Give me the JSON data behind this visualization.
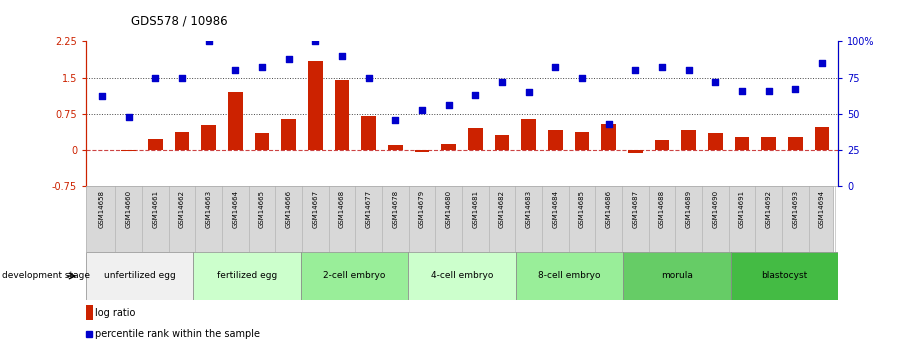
{
  "title": "GDS578 / 10986",
  "samples": [
    "GSM14658",
    "GSM14660",
    "GSM14661",
    "GSM14662",
    "GSM14663",
    "GSM14664",
    "GSM14665",
    "GSM14666",
    "GSM14667",
    "GSM14668",
    "GSM14677",
    "GSM14678",
    "GSM14679",
    "GSM14680",
    "GSM14681",
    "GSM14682",
    "GSM14683",
    "GSM14684",
    "GSM14685",
    "GSM14686",
    "GSM14687",
    "GSM14688",
    "GSM14689",
    "GSM14690",
    "GSM14691",
    "GSM14692",
    "GSM14693",
    "GSM14694"
  ],
  "log_ratio": [
    0.0,
    -0.02,
    0.22,
    0.38,
    0.52,
    1.2,
    0.35,
    0.65,
    1.85,
    1.45,
    0.7,
    0.1,
    -0.04,
    0.12,
    0.45,
    0.32,
    0.65,
    0.42,
    0.38,
    0.55,
    -0.06,
    0.2,
    0.42,
    0.36,
    0.28,
    0.28,
    0.27,
    0.48
  ],
  "percentile_rank": [
    62,
    48,
    75,
    75,
    100,
    80,
    82,
    88,
    100,
    90,
    75,
    46,
    53,
    56,
    63,
    72,
    65,
    82,
    75,
    43,
    80,
    82,
    80,
    72,
    66,
    66,
    67,
    85
  ],
  "stages": [
    {
      "label": "unfertilized egg",
      "start": 0,
      "end": 4,
      "color": "#f0f0f0"
    },
    {
      "label": "fertilized egg",
      "start": 4,
      "end": 8,
      "color": "#ccffcc"
    },
    {
      "label": "2-cell embryo",
      "start": 8,
      "end": 12,
      "color": "#99ee99"
    },
    {
      "label": "4-cell embryo",
      "start": 12,
      "end": 16,
      "color": "#ccffcc"
    },
    {
      "label": "8-cell embryo",
      "start": 16,
      "end": 20,
      "color": "#99ee99"
    },
    {
      "label": "morula",
      "start": 20,
      "end": 24,
      "color": "#66cc66"
    },
    {
      "label": "blastocyst",
      "start": 24,
      "end": 28,
      "color": "#44bb44"
    }
  ],
  "ylim_left": [
    -0.75,
    2.25
  ],
  "ylim_right": [
    0,
    100
  ],
  "yticks_left": [
    -0.75,
    0.0,
    0.75,
    1.5,
    2.25
  ],
  "yticks_right": [
    0,
    25,
    50,
    75,
    100
  ],
  "ytick_labels_left": [
    "-0.75",
    "0",
    "0.75",
    "1.5",
    "2.25"
  ],
  "ytick_labels_right": [
    "0",
    "25",
    "50",
    "75",
    "100%"
  ],
  "bar_color": "#cc2200",
  "dot_color": "#0000cc",
  "zero_line_color": "#cc4444",
  "hline_color": "#444444",
  "hlines": [
    0.75,
    1.5
  ],
  "legend_bar_label": "log ratio",
  "legend_dot_label": "percentile rank within the sample",
  "stage_label": "development stage"
}
